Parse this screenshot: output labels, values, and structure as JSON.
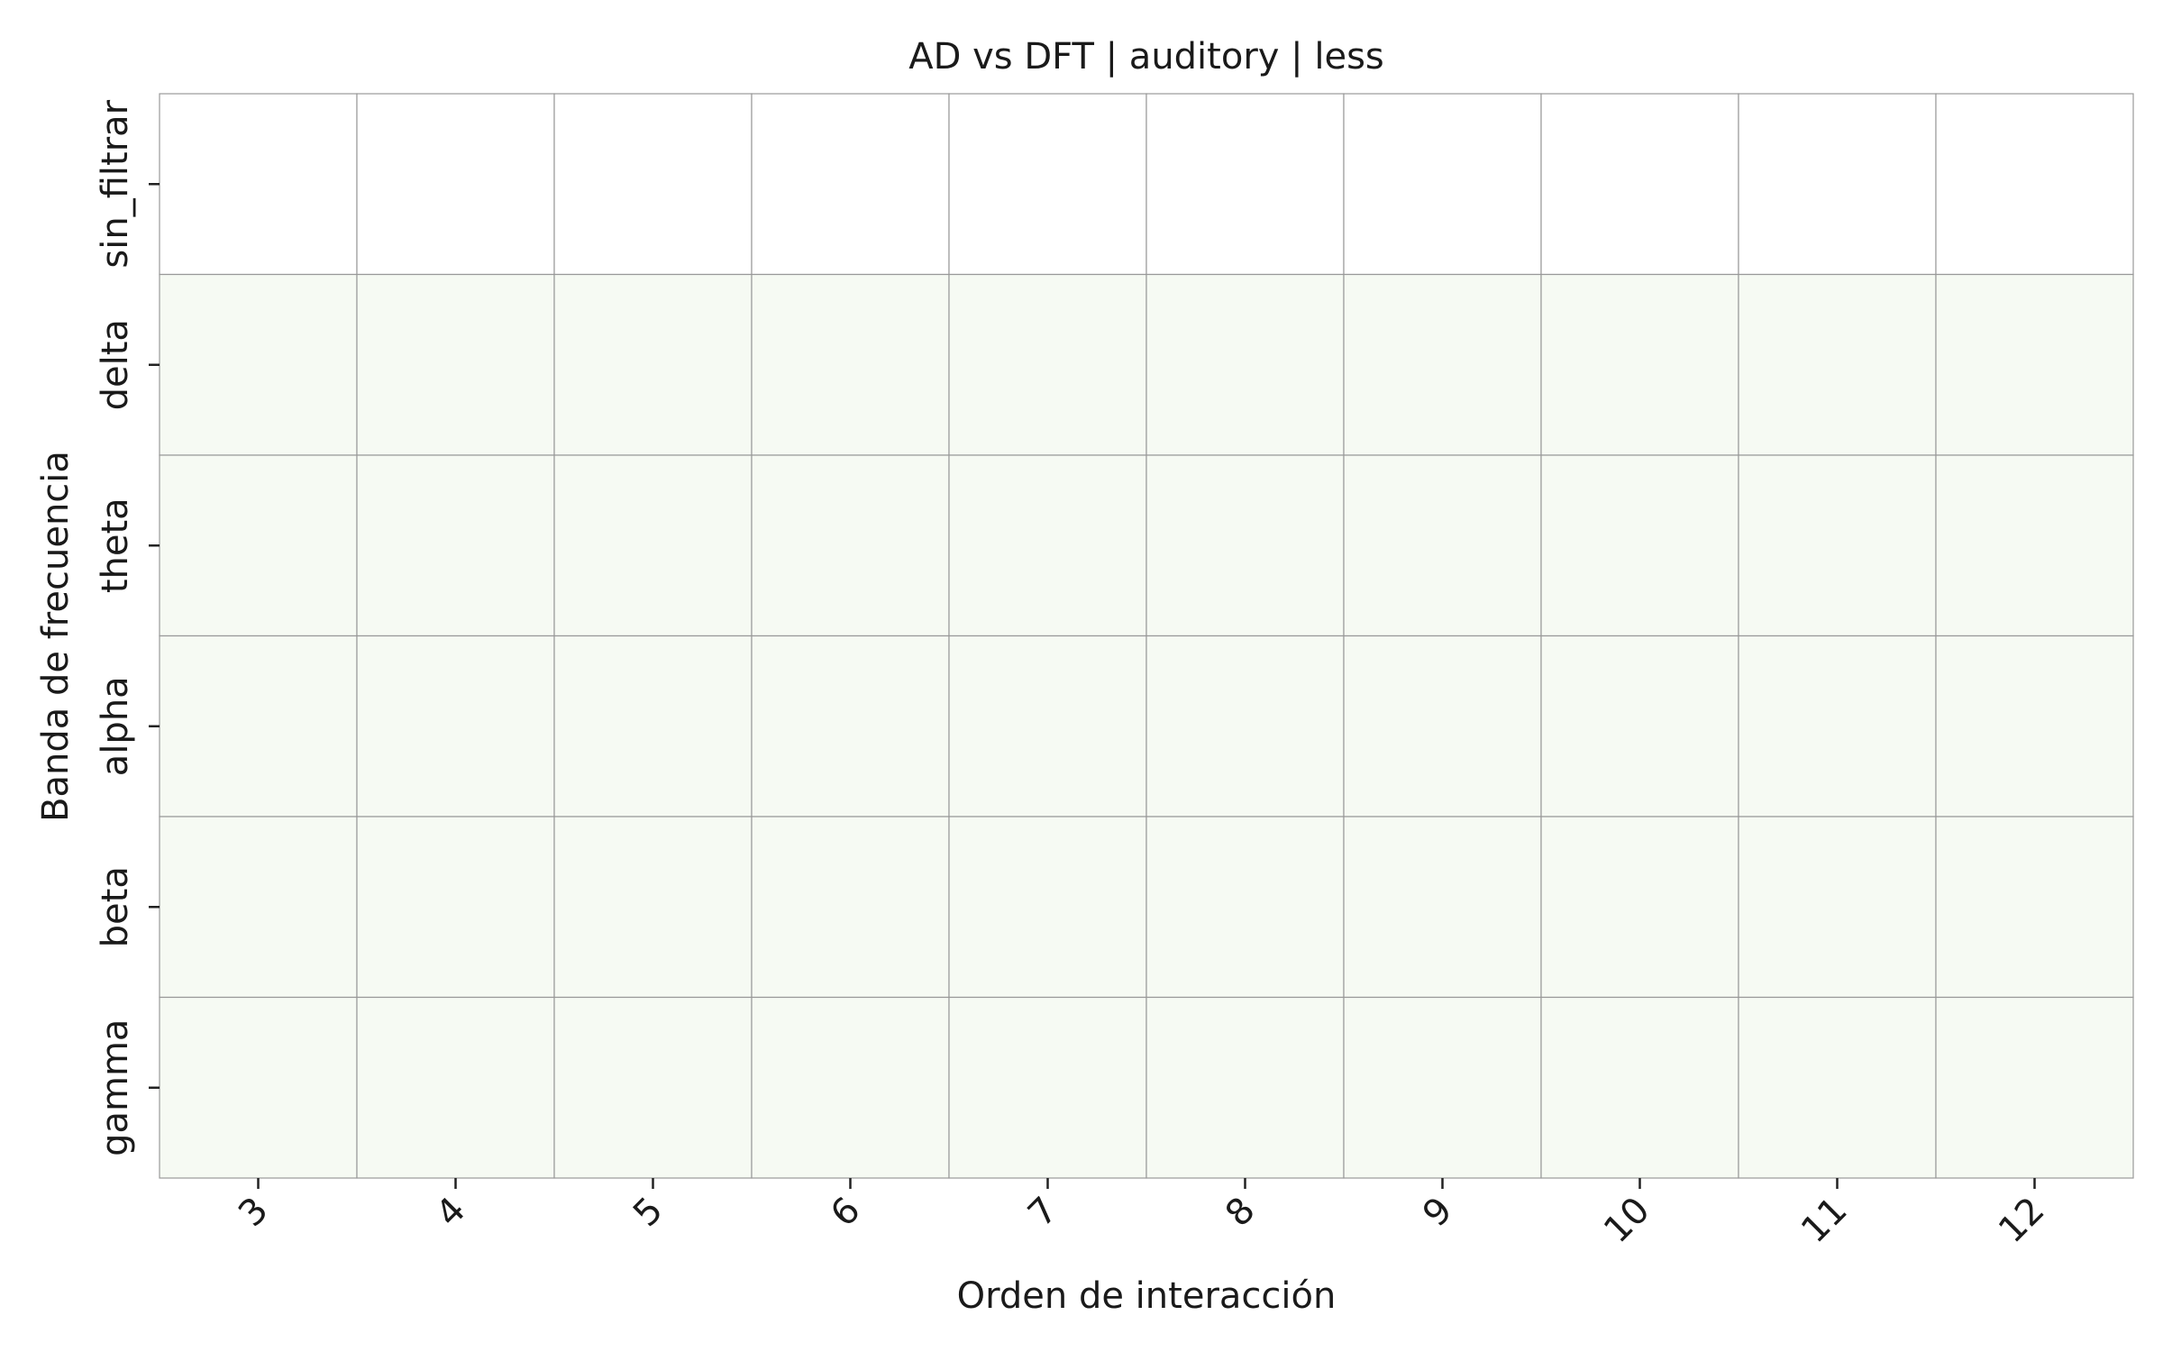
{
  "chart_data": {
    "type": "heatmap",
    "title": "AD vs DFT | auditory | less",
    "xlabel": "Orden de interacción",
    "ylabel": "Banda de frecuencia",
    "x_categories": [
      "3",
      "4",
      "5",
      "6",
      "7",
      "8",
      "9",
      "10",
      "11",
      "12"
    ],
    "y_categories": [
      "sin_filtrar",
      "delta",
      "theta",
      "alpha",
      "beta",
      "gamma"
    ],
    "values": [
      [
        null,
        null,
        null,
        null,
        null,
        null,
        null,
        null,
        null,
        null
      ],
      [
        0,
        0,
        0,
        0,
        0,
        0,
        0,
        0,
        0,
        0
      ],
      [
        0,
        0,
        0,
        0,
        0,
        0,
        0,
        0,
        0,
        0
      ],
      [
        0,
        0,
        0,
        0,
        0,
        0,
        0,
        0,
        0,
        0
      ],
      [
        0,
        0,
        0,
        0,
        0,
        0,
        0,
        0,
        0,
        0
      ],
      [
        0,
        0,
        0,
        0,
        0,
        0,
        0,
        0,
        0,
        0
      ]
    ],
    "colors": {
      "cell_fill": "#f6faf3",
      "missing_fill": "#ffffff",
      "grid_line": "#999999"
    },
    "grid": true,
    "legend": "none"
  }
}
